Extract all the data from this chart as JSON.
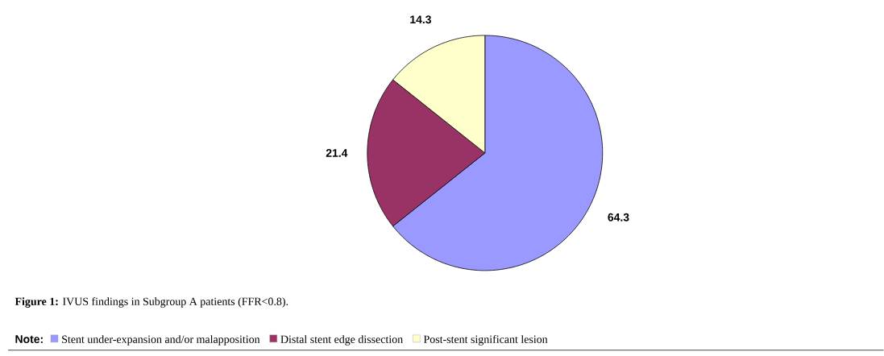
{
  "chart_data": {
    "type": "pie",
    "title": "**Figure 1:** IVUS findings in Subgroup A patients (FFR<0.8).",
    "legend_title": "Note:",
    "categories": [
      "Stent under-expansion and/or malapposition",
      "Distal stent edge dissection",
      "Post-stent significant lesion"
    ],
    "values": [
      64.3,
      21.4,
      14.3
    ],
    "colors": [
      "#9999ff",
      "#993366",
      "#ffffcc"
    ],
    "data_labels": true,
    "legend": "bottom"
  }
}
